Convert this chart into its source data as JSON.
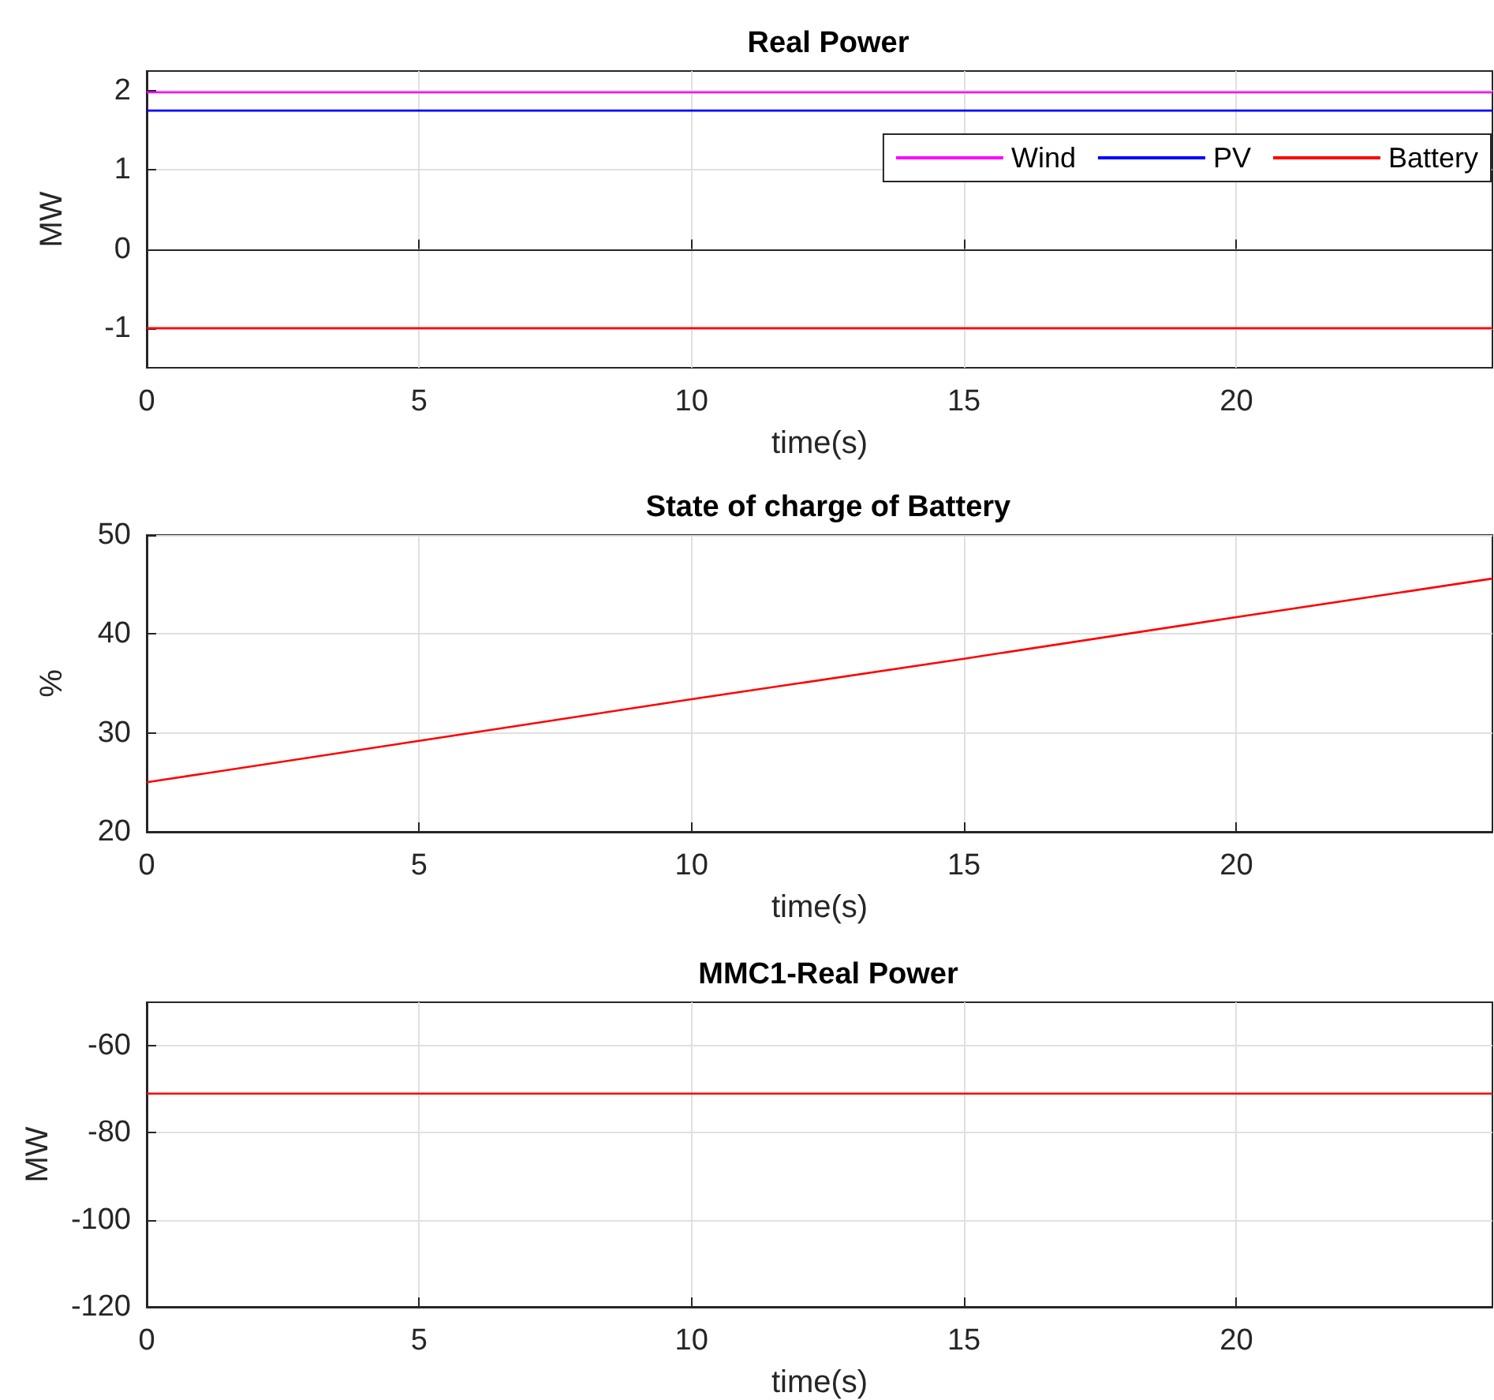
{
  "chart_data": [
    {
      "type": "line",
      "title": "Real Power",
      "xlabel": "time(s)",
      "ylabel": "MW",
      "xlim": [
        0,
        24.7
      ],
      "xticks": [
        0,
        5,
        10,
        15,
        20
      ],
      "ylim": [
        -1.5,
        2.25
      ],
      "yticks": [
        -1,
        0,
        1,
        2
      ],
      "grid": true,
      "legend": "top right",
      "series": [
        {
          "name": "Wind",
          "color": "#ff00ff",
          "x": [
            0,
            24.7
          ],
          "values": [
            1.98,
            1.98
          ]
        },
        {
          "name": "PV",
          "color": "#0000ff",
          "x": [
            0,
            24.7
          ],
          "values": [
            1.75,
            1.75
          ]
        },
        {
          "name": "Battery",
          "color": "#ff0000",
          "x": [
            0,
            24.7
          ],
          "values": [
            -1,
            -1
          ]
        }
      ]
    },
    {
      "type": "line",
      "title": "State of charge of Battery",
      "xlabel": "time(s)",
      "ylabel": "%",
      "xlim": [
        0,
        24.7
      ],
      "xticks": [
        0,
        5,
        10,
        15,
        20
      ],
      "ylim": [
        20,
        50
      ],
      "yticks": [
        20,
        30,
        40,
        50
      ],
      "grid": true,
      "series": [
        {
          "color": "#ff0000",
          "x": [
            0,
            5,
            10,
            15,
            20,
            24.7
          ],
          "values": [
            25,
            29.2,
            33.4,
            37.5,
            41.7,
            45.6
          ]
        }
      ]
    },
    {
      "type": "line",
      "title": "MMC1-Real Power",
      "xlabel": "time(s)",
      "ylabel": "MW",
      "xlim": [
        0,
        24.7
      ],
      "xticks": [
        0,
        5,
        10,
        15,
        20
      ],
      "ylim": [
        -120,
        -50
      ],
      "yticks": [
        -120,
        -100,
        -80,
        -60
      ],
      "grid": true,
      "series": [
        {
          "color": "#ff0000",
          "x": [
            0,
            2.5,
            5,
            7.5,
            10,
            12.5,
            15,
            17.5,
            20,
            22.5,
            24.7
          ],
          "values": [
            -71,
            -71,
            -71,
            -71,
            -71,
            -71,
            -71,
            -71,
            -71,
            -71,
            -71
          ]
        }
      ]
    }
  ]
}
